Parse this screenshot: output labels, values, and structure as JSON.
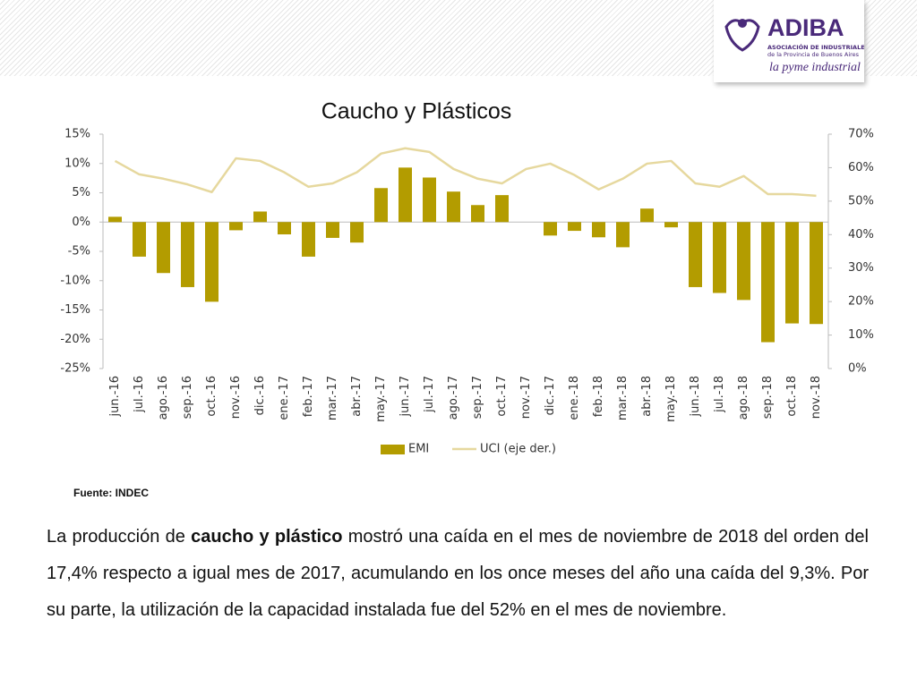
{
  "header": {
    "logo_name": "ADIBA",
    "logo_line1": "ASOCIACIÓN DE INDUSTRIALES",
    "logo_line2": "de la Provincia de Buenos Aires",
    "logo_tagline": "la pyme industrial"
  },
  "chart_data": {
    "type": "bar_line",
    "title": "Caucho y Plásticos",
    "categories": [
      "jun.-16",
      "jul.-16",
      "ago.-16",
      "sep.-16",
      "oct.-16",
      "nov.-16",
      "dic.-16",
      "ene.-17",
      "feb.-17",
      "mar.-17",
      "abr.-17",
      "may.-17",
      "jun.-17",
      "jul.-17",
      "ago.-17",
      "sep.-17",
      "oct.-17",
      "nov.-17",
      "dic.-17",
      "ene.-18",
      "feb.-18",
      "mar.-18",
      "abr.-18",
      "may.-18",
      "jun.-18",
      "jul.-18",
      "ago.-18",
      "sep.-18",
      "oct.-18",
      "nov.-18"
    ],
    "series": [
      {
        "name": "EMI",
        "kind": "bar",
        "color": "#b39c00",
        "values": [
          0.9,
          -5.9,
          -8.7,
          -11.1,
          -13.6,
          -1.4,
          1.8,
          -2.1,
          -5.9,
          -2.7,
          -3.5,
          5.8,
          9.3,
          7.6,
          5.2,
          2.9,
          4.6,
          0,
          -2.3,
          -1.5,
          -2.6,
          -4.3,
          2.3,
          -0.9,
          -11.1,
          -12.1,
          -13.3,
          -20.5,
          -17.3,
          -17.4
        ]
      },
      {
        "name": "UCI (eje der.)",
        "kind": "line",
        "axis": "y2",
        "color": "#e6d89e",
        "values": [
          62.0,
          58.0,
          56.7,
          55.0,
          52.7,
          62.8,
          62.0,
          58.6,
          54.3,
          55.3,
          58.6,
          64.2,
          65.8,
          64.7,
          59.6,
          56.7,
          55.3,
          59.6,
          61.2,
          57.8,
          53.5,
          56.7,
          61.2,
          62.0,
          55.3,
          54.3,
          57.5,
          52.1,
          52.1,
          51.6
        ]
      }
    ],
    "ylim": [
      -25,
      15
    ],
    "yticks": [
      {
        "value": -25,
        "label": "-25%"
      },
      {
        "value": -20,
        "label": "-20%"
      },
      {
        "value": -15,
        "label": "-15%"
      },
      {
        "value": -10,
        "label": "-10%"
      },
      {
        "value": -5,
        "label": "-5%"
      },
      {
        "value": 0,
        "label": "0%"
      },
      {
        "value": 5,
        "label": "5%"
      },
      {
        "value": 10,
        "label": "10%"
      },
      {
        "value": 15,
        "label": "15%"
      }
    ],
    "y2lim": [
      0,
      70
    ],
    "y2ticks": [
      {
        "value": 0,
        "label": "0%"
      },
      {
        "value": 10,
        "label": "10%"
      },
      {
        "value": 20,
        "label": "20%"
      },
      {
        "value": 30,
        "label": "30%"
      },
      {
        "value": 40,
        "label": "40%"
      },
      {
        "value": 50,
        "label": "50%"
      },
      {
        "value": 60,
        "label": "60%"
      },
      {
        "value": 70,
        "label": "70%"
      }
    ],
    "legend": "bottom",
    "source": "Fuente: INDEC"
  },
  "paragraph": [
    {
      "text": "La producción de ",
      "bold": false
    },
    {
      "text": "caucho y plástico",
      "bold": true
    },
    {
      "text": " mostró una caída en el mes de noviembre de 2018 del orden del 17,4% respecto a igual mes de 2017, acumulando en los once meses del año una caída del 9,3%. Por su parte, la utilización de la capacidad instalada fue del 52% en el mes de noviembre.",
      "bold": false
    }
  ]
}
